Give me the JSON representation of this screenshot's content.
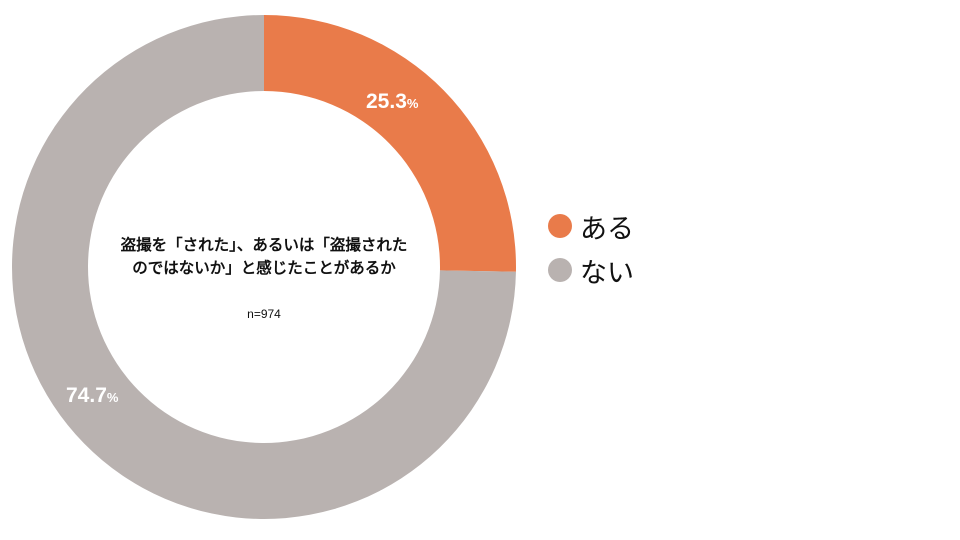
{
  "chart_data": {
    "type": "pie",
    "subtype": "donut",
    "title": "盗撮を「された」、あるいは「盗撮されたのではないか」と感じたことがあるか",
    "sample_size": "n=974",
    "categories": [
      "ある",
      "ない"
    ],
    "values": [
      25.3,
      74.7
    ],
    "unit": "%",
    "colors": [
      "#E97B4A",
      "#B9B2B0"
    ],
    "legend_position": "right",
    "start_angle": "12 o'clock",
    "direction": "clockwise"
  },
  "center": {
    "title": "盗撮を「された」、あるいは「盗撮されたのではないか」と感じたことがあるか",
    "n_label": "n=974"
  },
  "labels": {
    "aru": {
      "value": "25.3",
      "unit": "%"
    },
    "nai": {
      "value": "74.7",
      "unit": "%"
    }
  },
  "legend": {
    "items": [
      {
        "label": "ある",
        "color": "#E97B4A"
      },
      {
        "label": "ない",
        "color": "#B9B2B0"
      }
    ]
  }
}
